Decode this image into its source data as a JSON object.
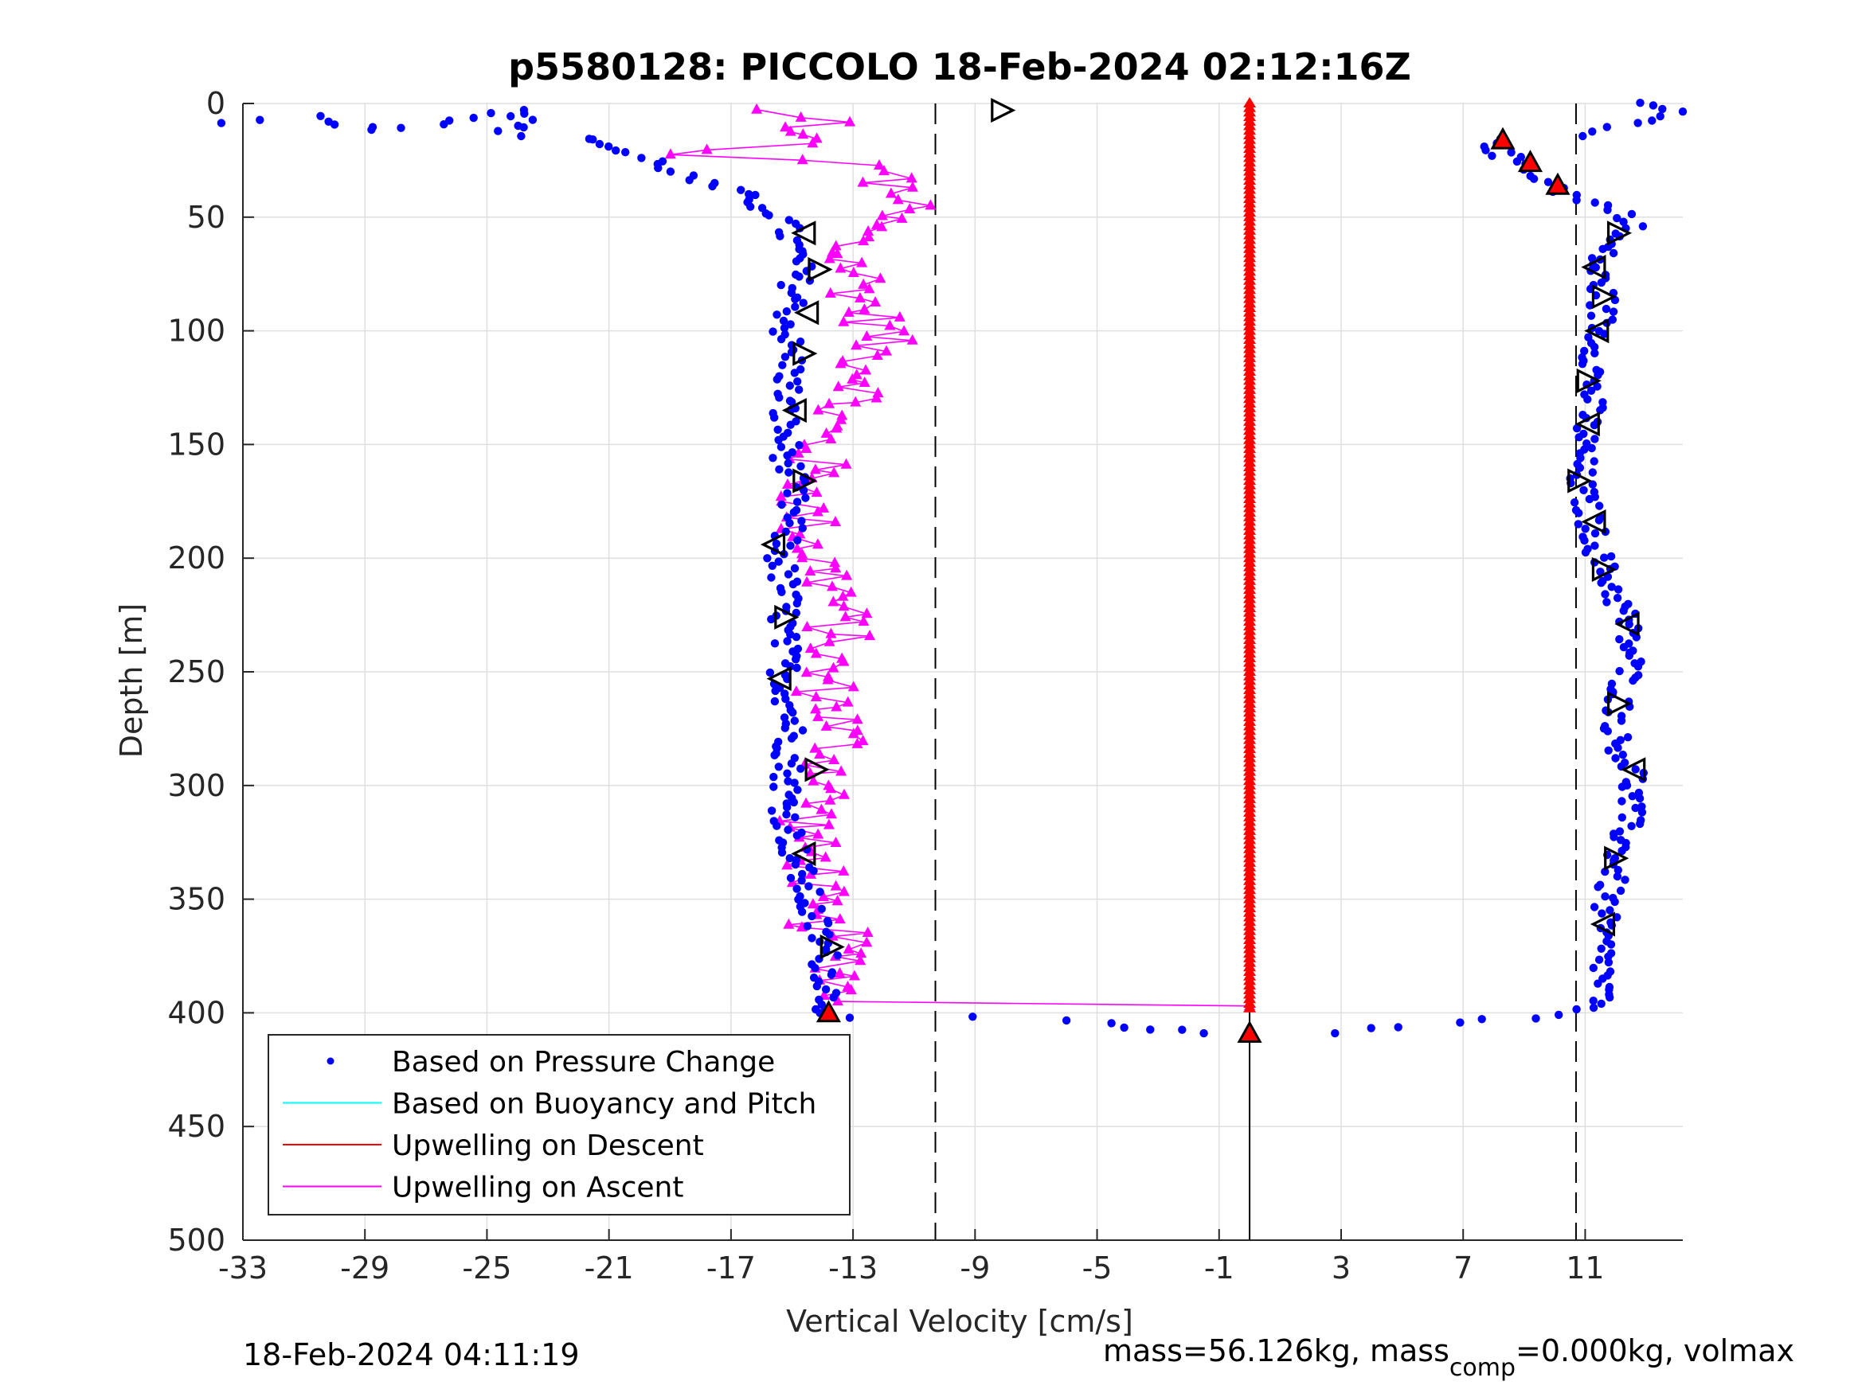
{
  "chart_data": {
    "type": "scatter",
    "title": "p5580128: PICCOLO 18-Feb-2024 02:12:16Z",
    "xlabel": "Vertical Velocity [cm/s]",
    "ylabel": "Depth [m]",
    "xlim": [
      -33,
      14.2
    ],
    "ylim": [
      0,
      500
    ],
    "y_reversed": true,
    "grid": true,
    "xticks": [
      -33,
      -29,
      -25,
      -21,
      -17,
      -13,
      -9,
      -5,
      -1,
      3,
      7,
      11
    ],
    "yticks": [
      0,
      50,
      100,
      150,
      200,
      250,
      300,
      350,
      400,
      450,
      500
    ],
    "xtick_labels": [
      "-33",
      "-29",
      "-25",
      "-21",
      "-17",
      "-13",
      "-9",
      "-5",
      "-1",
      "3",
      "7",
      "11"
    ],
    "ytick_labels": [
      "0",
      "50",
      "100",
      "150",
      "200",
      "250",
      "300",
      "350",
      "400",
      "450",
      "500"
    ],
    "reference_lines": {
      "dashed_x": [
        -10.3,
        10.7
      ],
      "solid_x": 0
    },
    "legend": {
      "location": "bottom-left",
      "entries": [
        {
          "label": "Based on Pressure Change",
          "color": "#0000ff",
          "marker": "dot"
        },
        {
          "label": "Based on Buoyancy and Pitch",
          "color": "#00ffff",
          "marker": "line"
        },
        {
          "label": "Upwelling on Descent",
          "color": "#ff0000",
          "marker": "line"
        },
        {
          "label": "Upwelling on Ascent",
          "color": "#ff00ff",
          "marker": "line"
        }
      ]
    },
    "series": [
      {
        "name": "Based on Pressure Change",
        "color": "#0000ff",
        "descent_profile": [
          [
            -33.3,
            9
          ],
          [
            -30.8,
            6
          ],
          [
            -28.3,
            12
          ],
          [
            -23.6,
            3
          ],
          [
            -24.3,
            14
          ],
          [
            -21.5,
            15
          ],
          [
            -21,
            19
          ],
          [
            -20.5,
            22
          ],
          [
            -19.5,
            25
          ],
          [
            -18.8,
            30
          ],
          [
            -18,
            35
          ],
          [
            -17,
            38
          ],
          [
            -16.5,
            42
          ],
          [
            -16,
            45
          ],
          [
            -15.5,
            48
          ],
          [
            -15.2,
            55
          ],
          [
            -15,
            62
          ],
          [
            -14.8,
            70
          ],
          [
            -14.9,
            85
          ],
          [
            -15.2,
            100
          ],
          [
            -15,
            115
          ],
          [
            -15.3,
            135
          ],
          [
            -15.2,
            150
          ],
          [
            -15,
            170
          ],
          [
            -15.1,
            185
          ],
          [
            -15.4,
            200
          ],
          [
            -15.2,
            215
          ],
          [
            -15.3,
            235
          ],
          [
            -15.2,
            255
          ],
          [
            -15,
            270
          ],
          [
            -15.1,
            290
          ],
          [
            -15.2,
            310
          ],
          [
            -14.9,
            330
          ],
          [
            -14.5,
            350
          ],
          [
            -14,
            370
          ],
          [
            -13.8,
            385
          ],
          [
            -13.8,
            398
          ],
          [
            -13.5,
            402
          ],
          [
            -9,
            402
          ],
          [
            -6.5,
            403
          ],
          [
            -5,
            404
          ],
          [
            -4.2,
            406
          ],
          [
            -3.5,
            407
          ],
          [
            -2.5,
            408
          ],
          [
            -1.5,
            409
          ]
        ],
        "ascent_profile": [
          [
            12.8,
            0
          ],
          [
            13.8,
            4
          ],
          [
            13,
            7
          ],
          [
            10.5,
            14
          ],
          [
            8.3,
            16
          ],
          [
            8,
            20
          ],
          [
            8.5,
            24
          ],
          [
            9.2,
            28
          ],
          [
            9.6,
            33
          ],
          [
            10.1,
            37
          ],
          [
            10.8,
            42
          ],
          [
            12,
            47
          ],
          [
            12.7,
            52
          ],
          [
            11.8,
            60
          ],
          [
            11.3,
            72
          ],
          [
            11.6,
            85
          ],
          [
            11.5,
            100
          ],
          [
            11.3,
            115
          ],
          [
            11.2,
            130
          ],
          [
            11,
            145
          ],
          [
            10.8,
            165
          ],
          [
            11.2,
            185
          ],
          [
            11.6,
            205
          ],
          [
            12.3,
            225
          ],
          [
            12.5,
            245
          ],
          [
            12.1,
            265
          ],
          [
            12,
            280
          ],
          [
            12.6,
            295
          ],
          [
            12.4,
            315
          ],
          [
            12,
            335
          ],
          [
            11.7,
            350
          ],
          [
            11.5,
            365
          ],
          [
            11.6,
            380
          ],
          [
            11.5,
            395
          ],
          [
            10.5,
            399
          ],
          [
            9.5,
            402
          ],
          [
            8,
            403
          ],
          [
            6.5,
            404
          ],
          [
            5,
            406
          ],
          [
            4,
            407
          ],
          [
            2.8,
            409
          ]
        ],
        "points_estimated": true
      },
      {
        "name": "Upwelling on Descent",
        "color": "#ff0000",
        "profile": [
          [
            0,
            0
          ],
          [
            0,
            50
          ],
          [
            0,
            100
          ],
          [
            0,
            150
          ],
          [
            0,
            200
          ],
          [
            0,
            250
          ],
          [
            0,
            300
          ],
          [
            0,
            350
          ],
          [
            0,
            398
          ]
        ],
        "points_estimated": true
      },
      {
        "name": "Upwelling on Ascent",
        "color": "#ff00ff",
        "profile": [
          [
            -16.5,
            3
          ],
          [
            -13.5,
            8
          ],
          [
            -15.5,
            12
          ],
          [
            -14.5,
            18
          ],
          [
            -19.8,
            22
          ],
          [
            -13.8,
            25
          ],
          [
            -11.5,
            30
          ],
          [
            -12.5,
            35
          ],
          [
            -11,
            40
          ],
          [
            -11.5,
            45
          ],
          [
            -12.5,
            55
          ],
          [
            -13.5,
            65
          ],
          [
            -12.8,
            75
          ],
          [
            -12.6,
            90
          ],
          [
            -12,
            100
          ],
          [
            -12.5,
            115
          ],
          [
            -12.4,
            125
          ],
          [
            -13.6,
            135
          ],
          [
            -14.2,
            150
          ],
          [
            -14.3,
            165
          ],
          [
            -14.6,
            180
          ],
          [
            -14.2,
            200
          ],
          [
            -13.5,
            215
          ],
          [
            -13.5,
            235
          ],
          [
            -14.1,
            250
          ],
          [
            -13.6,
            265
          ],
          [
            -13.4,
            280
          ],
          [
            -13.8,
            300
          ],
          [
            -14.4,
            315
          ],
          [
            -14.6,
            325
          ],
          [
            -14,
            340
          ],
          [
            -14.8,
            355
          ],
          [
            -13.6,
            365
          ],
          [
            -13.2,
            380
          ],
          [
            -13.5,
            395
          ],
          [
            0,
            397
          ]
        ],
        "points_estimated": true
      },
      {
        "name": "Based on Buoyancy and Pitch",
        "color": "#00ffff",
        "profile": []
      }
    ],
    "descent_triangle_markers": [
      [
        -8.1,
        3
      ],
      [
        -14.6,
        57
      ],
      [
        -14.1,
        73
      ],
      [
        -14.5,
        92
      ],
      [
        -14.6,
        110
      ],
      [
        -14.9,
        135
      ],
      [
        -14.6,
        166
      ],
      [
        -15.6,
        194
      ],
      [
        -15.2,
        226
      ],
      [
        -15.4,
        253
      ],
      [
        -14.2,
        293
      ],
      [
        -14.6,
        330
      ],
      [
        -13.7,
        371
      ]
    ],
    "ascent_triangle_markers": [
      [
        12.1,
        57
      ],
      [
        11.3,
        72
      ],
      [
        11.6,
        85
      ],
      [
        11.4,
        100
      ],
      [
        11.1,
        122
      ],
      [
        11.1,
        141
      ],
      [
        10.8,
        166
      ],
      [
        11.3,
        184
      ],
      [
        11.6,
        205
      ],
      [
        12.4,
        229
      ],
      [
        12.1,
        264
      ],
      [
        12.6,
        293
      ],
      [
        12,
        332
      ],
      [
        11.6,
        361
      ]
    ],
    "red_triangle_markers": [
      [
        8.3,
        16
      ],
      [
        9.2,
        26
      ],
      [
        10.1,
        36
      ],
      [
        -13.8,
        400
      ],
      [
        0,
        409
      ]
    ]
  },
  "footer": {
    "timestamp": "18-Feb-2024 04:11:19",
    "mass_text_prefix": "mass=56.126kg, mass",
    "mass_text_subscript": "comp",
    "mass_text_suffix": "=0.000kg, volmax"
  }
}
